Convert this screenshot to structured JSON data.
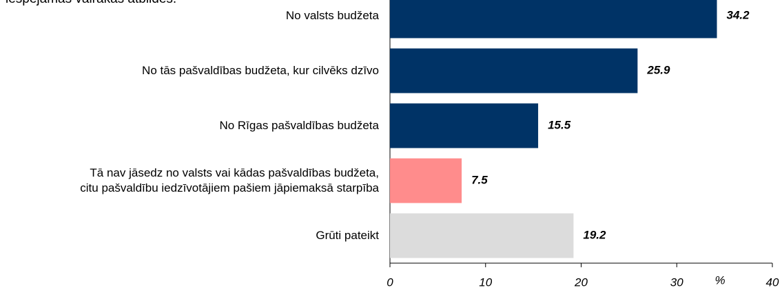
{
  "chart_data": {
    "type": "barh",
    "subtitle": "iespējamas vairākas atbildes.",
    "categories": [
      "No valsts budžeta",
      "No tās pašvaldības budžeta, kur cilvēks dzīvo",
      "No Rīgas pašvaldības budžeta",
      "Tā nav jāsedz no valsts vai kādas pašvaldības budžeta,\ncitu pašvaldību iedzīvotājiem pašiem jāpiemaksā starpība",
      "Grūti pateikt"
    ],
    "values": [
      34.2,
      25.9,
      15.5,
      7.5,
      19.2
    ],
    "colors": [
      "#003366",
      "#003366",
      "#003366",
      "#ff8c8c",
      "#dcdcdc"
    ],
    "xlim": [
      0,
      40
    ],
    "xticks": [
      0,
      10,
      20,
      30,
      40
    ],
    "xlabel": "%",
    "grid": false
  }
}
